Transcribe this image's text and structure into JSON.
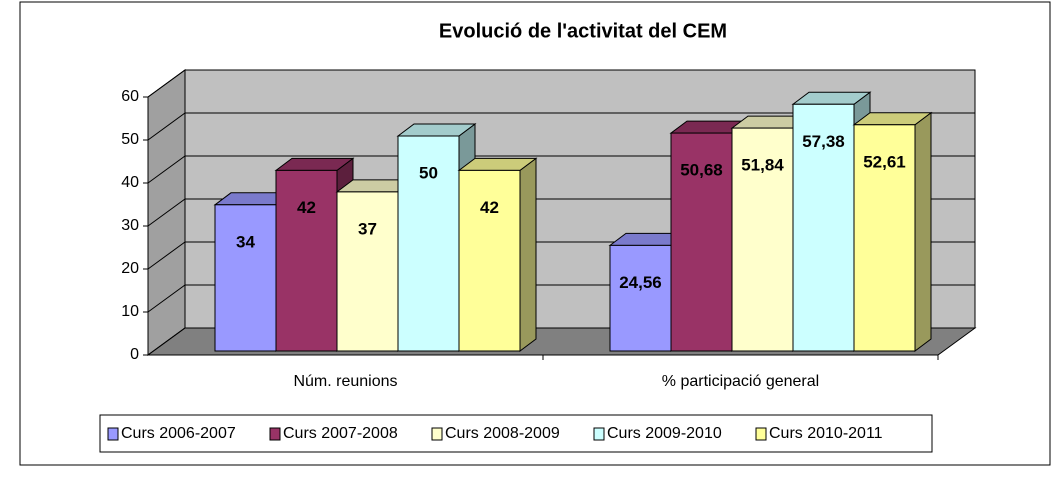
{
  "chart_data": {
    "type": "bar3d",
    "title": "Evolució de l'activitat del CEM",
    "categories": [
      "Núm. reunions",
      "% participació general"
    ],
    "series": [
      {
        "name": "Curs 2006-2007",
        "color": "#9999ff",
        "values": [
          34,
          24.56
        ],
        "value_labels": [
          "34",
          "24,56"
        ]
      },
      {
        "name": "Curs 2007-2008",
        "color": "#993366",
        "values": [
          42,
          50.68
        ],
        "value_labels": [
          "42",
          "50,68"
        ]
      },
      {
        "name": "Curs 2008-2009",
        "color": "#ffffcc",
        "values": [
          37,
          51.84
        ],
        "value_labels": [
          "37",
          "51,84"
        ]
      },
      {
        "name": "Curs 2009-2010",
        "color": "#ccffff",
        "values": [
          50,
          57.38
        ],
        "value_labels": [
          "50",
          "57,38"
        ]
      },
      {
        "name": "Curs 2010-2011",
        "color": "#ffff99",
        "values": [
          42,
          52.61
        ],
        "value_labels": [
          "42",
          "52,61"
        ]
      }
    ],
    "ylim": [
      0,
      60
    ],
    "yticks": [
      0,
      10,
      20,
      30,
      40,
      50,
      60
    ],
    "grid": true,
    "legend": "bottom"
  }
}
